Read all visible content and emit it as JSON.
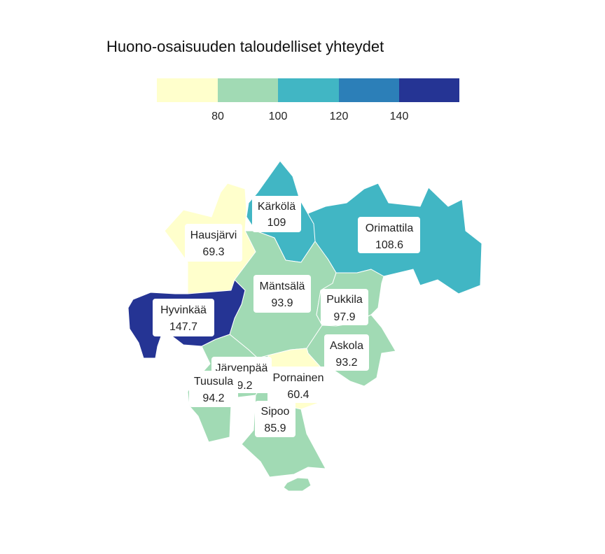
{
  "title": "Huono-osaisuuden taloudelliset yhteydet",
  "legend": {
    "ticks": [
      "80",
      "100",
      "120",
      "140"
    ],
    "colors": [
      "#ffffcc",
      "#a1dab4",
      "#41b6c4",
      "#2c7fb8",
      "#253494"
    ]
  },
  "regions": [
    {
      "name": "Hausjärvi",
      "value": "69.3",
      "color": "#ffffcc"
    },
    {
      "name": "Kärkölä",
      "value": "109",
      "color": "#41b6c4"
    },
    {
      "name": "Orimattila",
      "value": "108.6",
      "color": "#41b6c4"
    },
    {
      "name": "Mäntsälä",
      "value": "93.9",
      "color": "#a1dab4"
    },
    {
      "name": "Pukkila",
      "value": "97.9",
      "color": "#a1dab4"
    },
    {
      "name": "Hyvinkää",
      "value": "147.7",
      "color": "#253494"
    },
    {
      "name": "Askola",
      "value": "93.2",
      "color": "#a1dab4"
    },
    {
      "name": "Järvenpää",
      "value": "89.2",
      "color": "#a1dab4"
    },
    {
      "name": "Pornainen",
      "value": "60.4",
      "color": "#ffffcc"
    },
    {
      "name": "Tuusula",
      "value": "94.2",
      "color": "#a1dab4"
    },
    {
      "name": "Sipoo",
      "value": "85.9",
      "color": "#a1dab4"
    }
  ]
}
